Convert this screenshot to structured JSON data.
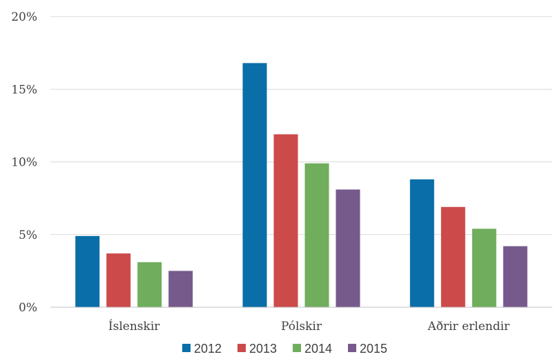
{
  "chart_data": {
    "type": "bar",
    "title": "",
    "xlabel": "",
    "ylabel": "",
    "categories": [
      "Íslenskir",
      "Pólskir",
      "Aðrir erlendir"
    ],
    "series": [
      {
        "name": "2012",
        "color": "#0a6ea8",
        "values": [
          4.9,
          16.8,
          8.8
        ]
      },
      {
        "name": "2013",
        "color": "#cd4a4a",
        "values": [
          3.7,
          11.9,
          6.9
        ]
      },
      {
        "name": "2014",
        "color": "#70ad5c",
        "values": [
          3.1,
          9.9,
          5.4
        ]
      },
      {
        "name": "2015",
        "color": "#765a8c",
        "values": [
          2.5,
          8.1,
          4.2
        ]
      }
    ],
    "ylim": [
      0,
      20
    ],
    "yticks": [
      0,
      5,
      10,
      15,
      20
    ],
    "ytick_labels": [
      "0%",
      "5%",
      "10%",
      "15%",
      "20%"
    ],
    "grid": true,
    "legend_position": "bottom"
  }
}
